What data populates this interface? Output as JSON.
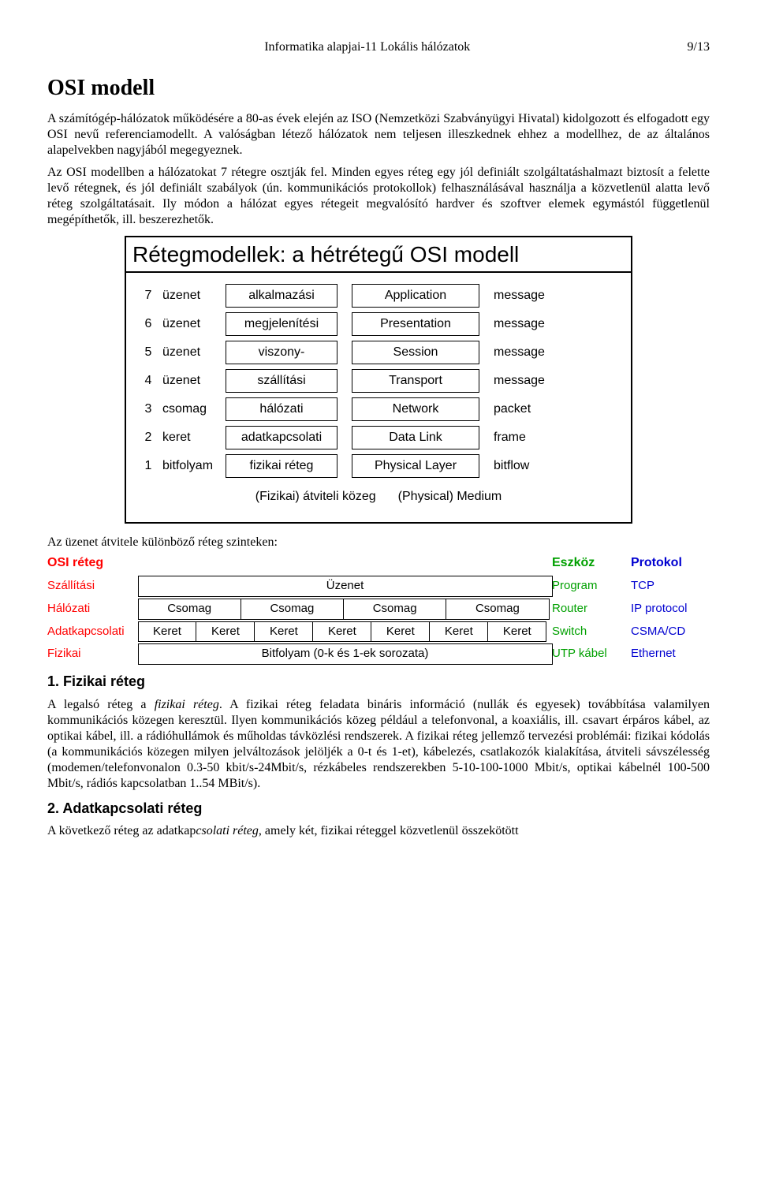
{
  "page_header": {
    "title": "Informatika alapjai-11 Lokális hálózatok",
    "page_no": "9/13"
  },
  "title": "OSI modell",
  "para1": "A számítógép-hálózatok működésére a 80-as évek elején az ISO (Nemzetközi Szabványügyi Hivatal) kidolgozott és elfogadott egy OSI nevű referenciamodellt. A valóságban létező hálózatok nem teljesen illeszkednek ehhez a modellhez, de az általános alapelvekben nagyjából megegyeznek.",
  "para2_a": "Az OSI modellben a hálózatokat 7 rétegre osztják fel. Minden egyes réteg egy jól definiált szolgáltatáshalmazt biztosít a felette levő rétegnek, és jól definiált szabályok (ún. kommunikációs protokollok) felhasználásával használja a közvetlenül alatta levő réteg szolgáltatásait. Ily módon a hálózat egyes rétegeit megvalósító hardver és szoftver elemek egymástól függetlenül megépíthetők, ill. beszerezhetők.",
  "osi_figure": {
    "title": "Rétegmodellek: a hétrétegű OSI modell",
    "rows": [
      {
        "num": "7",
        "hu": "üzenet",
        "box1": "alkalmazási",
        "box2": "Application",
        "en": "message"
      },
      {
        "num": "6",
        "hu": "üzenet",
        "box1": "megjelenítési",
        "box2": "Presentation",
        "en": "message"
      },
      {
        "num": "5",
        "hu": "üzenet",
        "box1": "viszony-",
        "box2": "Session",
        "en": "message"
      },
      {
        "num": "4",
        "hu": "üzenet",
        "box1": "szállítási",
        "box2": "Transport",
        "en": "message"
      },
      {
        "num": "3",
        "hu": "csomag",
        "box1": "hálózati",
        "box2": "Network",
        "en": "packet"
      },
      {
        "num": "2",
        "hu": "keret",
        "box1": "adatkapcsolati",
        "box2": "Data Link",
        "en": "frame"
      },
      {
        "num": "1",
        "hu": "bitfolyam",
        "box1": "fizikai réteg",
        "box2": "Physical Layer",
        "en": "bitflow"
      }
    ],
    "medium_hu": "(Fizikai) átviteli közeg",
    "medium_en": "(Physical) Medium"
  },
  "caption": "Az üzenet átvitele különböző réteg szinteken:",
  "transfer_table": {
    "headers": {
      "c1": "OSI réteg",
      "c2": "Eszköz",
      "c3": "Protokol"
    },
    "rows": [
      {
        "name": "Szállítási",
        "cells": [
          "Üzenet"
        ],
        "dev": "Program",
        "proto": "TCP",
        "span": "full"
      },
      {
        "name": "Hálózati",
        "cells": [
          "Csomag",
          "Csomag",
          "Csomag",
          "Csomag"
        ],
        "dev": "Router",
        "proto": "IP protocol",
        "span": "4"
      },
      {
        "name": "Adatkapcsolati",
        "cells": [
          "Keret",
          "Keret",
          "Keret",
          "Keret",
          "Keret",
          "Keret",
          "Keret"
        ],
        "dev": "Switch",
        "proto": "CSMA/CD",
        "span": "7"
      },
      {
        "name": "Fizikai",
        "cells": [
          "Bitfolyam (0-k és 1-ek sorozata)"
        ],
        "dev": "UTP kábel",
        "proto": "Ethernet",
        "span": "full"
      }
    ]
  },
  "sec1_title": "1. Fizikai réteg",
  "sec1_body_a": "A legalsó réteg a ",
  "sec1_body_it": "fizikai réteg",
  "sec1_body_b": ". A fizikai réteg feladata bináris információ (nullák és egyesek) továbbítása valamilyen kommunikációs közegen keresztül. Ilyen kommunikációs közeg például a telefonvonal, a koaxiális, ill. csavart érpáros kábel, az optikai kábel, ill. a rádióhullámok és műholdas távközlési rendszerek. A fizikai réteg jellemző tervezési problémái: fizikai kódolás (a kommunikációs közegen milyen jelváltozások jelöljék a 0-t és 1-et), kábelezés, csatlakozók kialakítása, átviteli sávszélesség (modemen/telefonvonalon 0.3-50 kbit/s-24Mbit/s, rézkábeles rendszerekben 5-10-100-1000 Mbit/s, optikai kábelnél 100-500 Mbit/s, rádiós kapcsolatban 1..54 MBit/s).",
  "sec2_title": "2. Adatkapcsolati réteg",
  "sec2_body_a": "A következő réteg az adatkap",
  "sec2_body_it": "csolati réteg",
  "sec2_body_b": ", amely két, fizikai réteggel közvetlenül összekötött"
}
